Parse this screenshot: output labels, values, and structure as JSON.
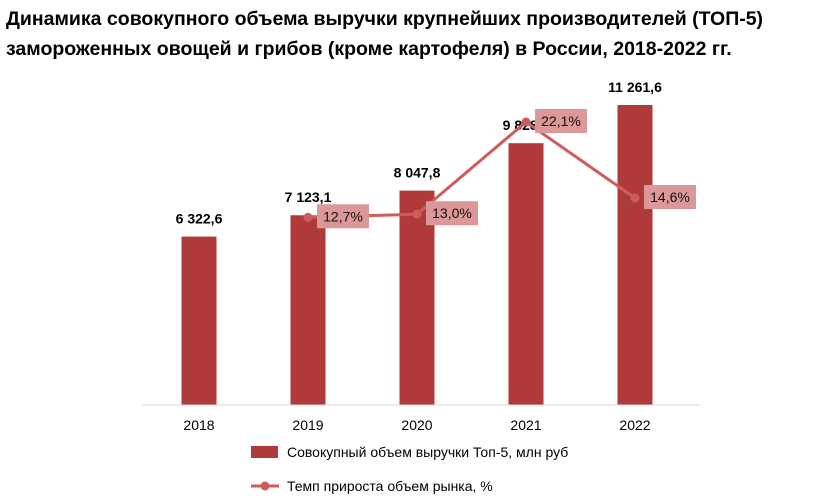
{
  "chart_data": {
    "type": "bar",
    "title": "Динамика совокупного объема выручки крупнейших производителей (ТОП-5) замороженных овощей и грибов (кроме картофеля) в России, 2018-2022 гг.",
    "categories": [
      "2018",
      "2019",
      "2020",
      "2021",
      "2022"
    ],
    "series": [
      {
        "name": "Совокупный объем выручки Топ-5, млн руб",
        "type": "bar",
        "values": [
          6322.6,
          7123.1,
          8047.8,
          9828.4,
          11261.6
        ],
        "labels": [
          "6 322,6",
          "7 123,1",
          "8 047,8",
          "9 828,4",
          "11 261,6"
        ],
        "color": "#b03a3a"
      },
      {
        "name": "Темп прироста объем рынка, %",
        "type": "line",
        "values": [
          null,
          12.7,
          13.0,
          22.1,
          14.6
        ],
        "labels": [
          "",
          "12,7%",
          "13,0%",
          "22,1%",
          "14,6%"
        ],
        "color": "#cf5c5c",
        "label_bg": "#dc9898"
      }
    ],
    "legend_position": "bottom",
    "grid": false
  }
}
